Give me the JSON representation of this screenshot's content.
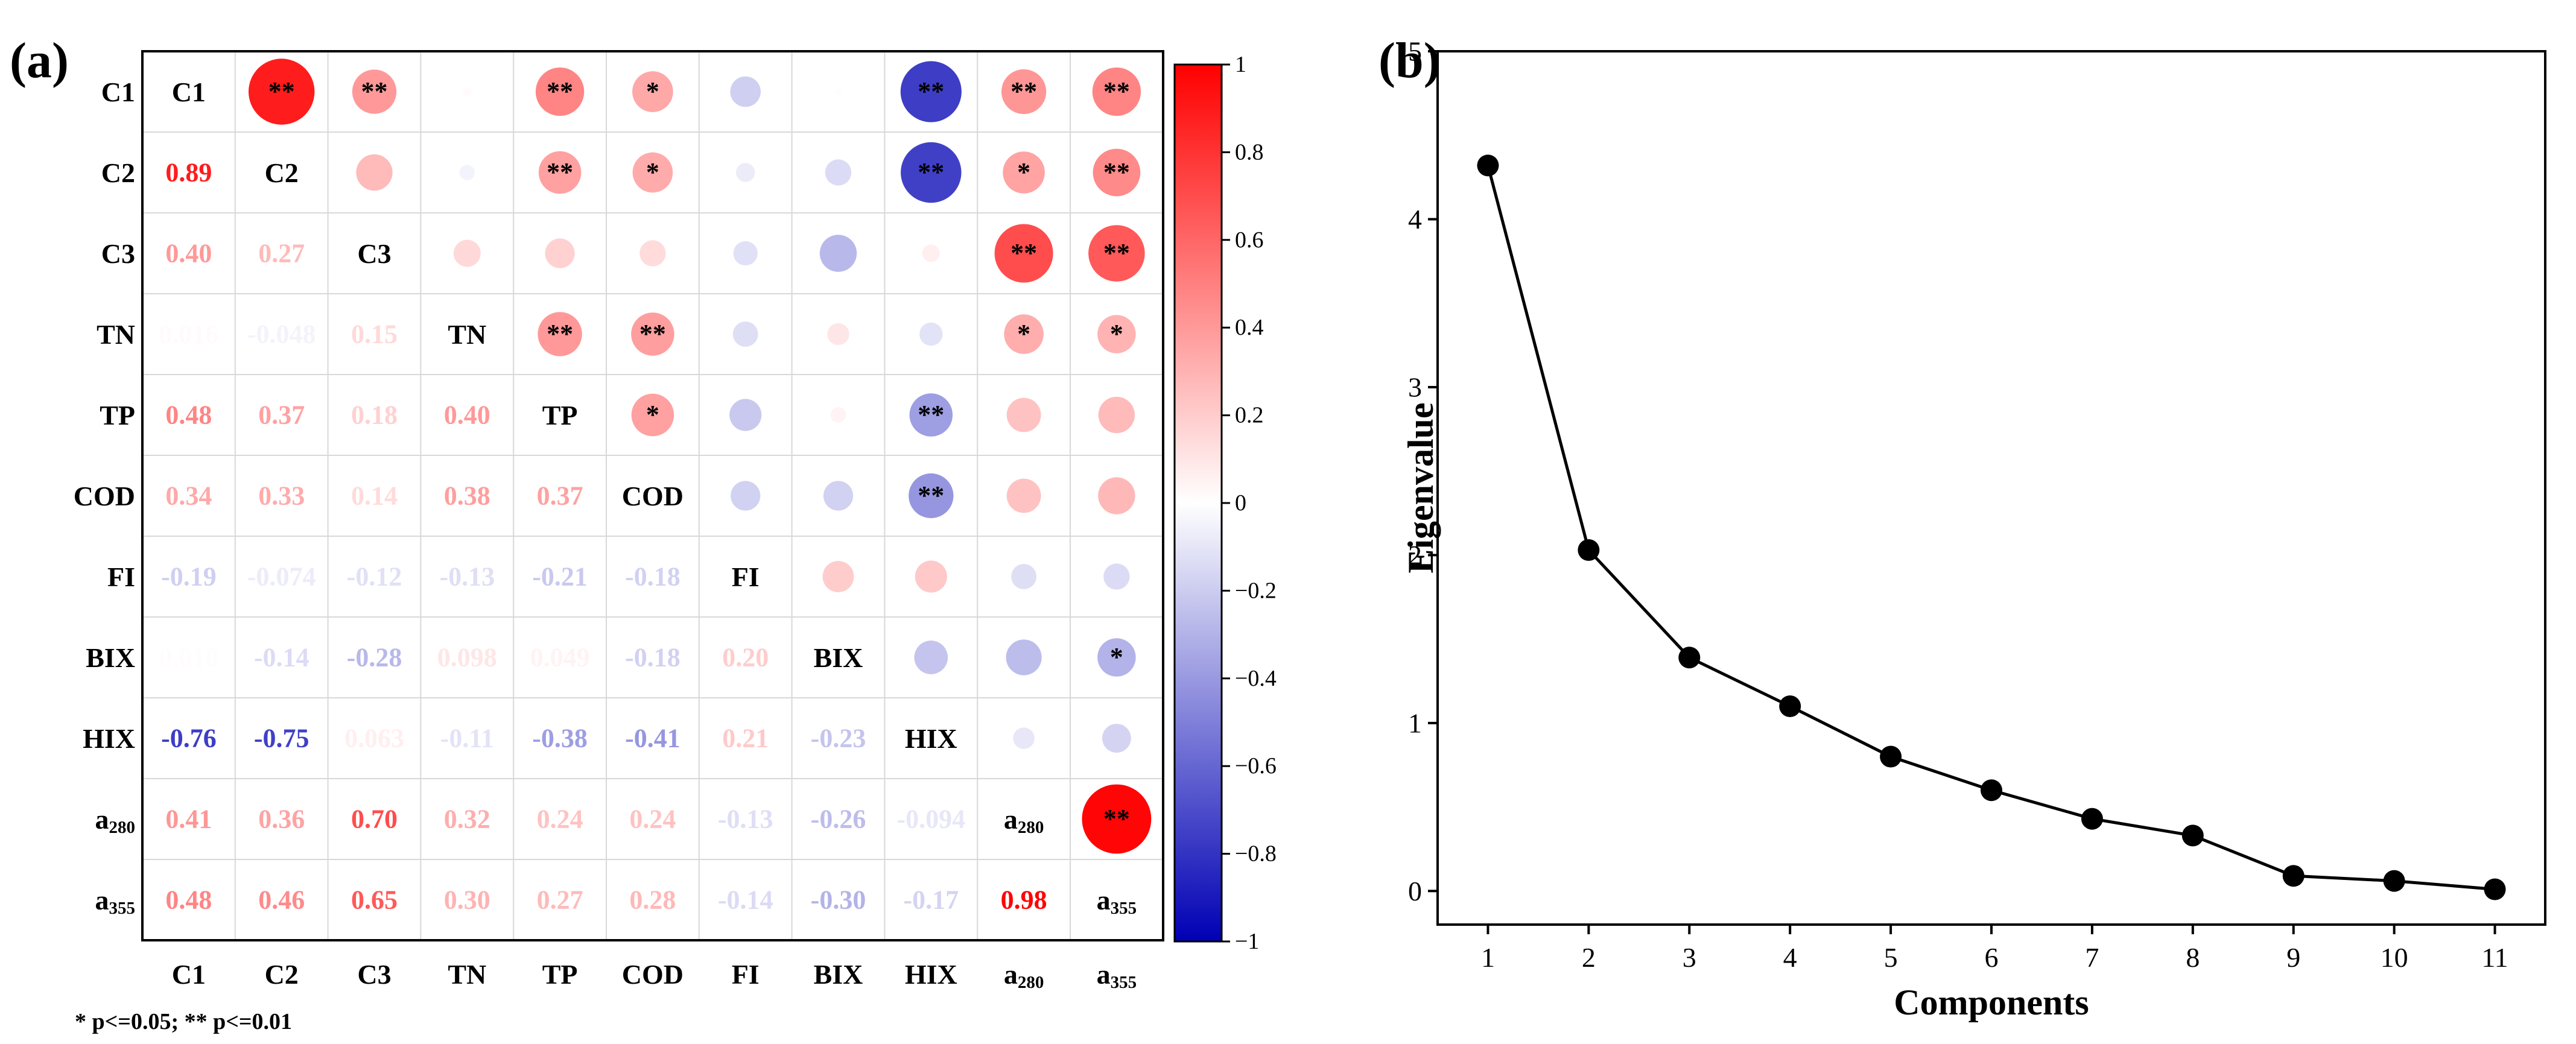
{
  "panel_a_label": "(a)",
  "panel_b_label": "(b)",
  "significance_note": "* p<=0.05; ** p<=0.01",
  "colors": {
    "positive": "#ff0000",
    "negative": "#0000b4",
    "neutral": "#ffffff"
  },
  "chart_data": [
    {
      "type": "heatmap",
      "variables": [
        "C1",
        "C2",
        "C3",
        "TN",
        "TP",
        "COD",
        "FI",
        "BIX",
        "HIX",
        "a280",
        "a355"
      ],
      "variable_display": [
        {
          "base": "C1",
          "sub": ""
        },
        {
          "base": "C2",
          "sub": ""
        },
        {
          "base": "C3",
          "sub": ""
        },
        {
          "base": "TN",
          "sub": ""
        },
        {
          "base": "TP",
          "sub": ""
        },
        {
          "base": "COD",
          "sub": ""
        },
        {
          "base": "FI",
          "sub": ""
        },
        {
          "base": "BIX",
          "sub": ""
        },
        {
          "base": "HIX",
          "sub": ""
        },
        {
          "base": "a",
          "sub": "280"
        },
        {
          "base": "a",
          "sub": "355"
        }
      ],
      "lower_labels": [
        [],
        [
          "0.89"
        ],
        [
          "0.40",
          "0.27"
        ],
        [
          "0.016",
          "-0.048",
          "0.15"
        ],
        [
          "0.48",
          "0.37",
          "0.18",
          "0.40"
        ],
        [
          "0.34",
          "0.33",
          "0.14",
          "0.38",
          "0.37"
        ],
        [
          "-0.19",
          "-0.074",
          "-0.12",
          "-0.13",
          "-0.21",
          "-0.18"
        ],
        [
          "0.010",
          "-0.14",
          "-0.28",
          "0.098",
          "0.049",
          "-0.18",
          "0.20"
        ],
        [
          "-0.76",
          "-0.75",
          "0.063",
          "-0.11",
          "-0.38",
          "-0.41",
          "0.21",
          "-0.23"
        ],
        [
          "0.41",
          "0.36",
          "0.70",
          "0.32",
          "0.24",
          "0.24",
          "-0.13",
          "-0.26",
          "-0.094"
        ],
        [
          "0.48",
          "0.46",
          "0.65",
          "0.30",
          "0.27",
          "0.28",
          "-0.14",
          "-0.30",
          "-0.17",
          "0.98"
        ]
      ],
      "significance": [
        [
          "",
          "**",
          "**",
          "",
          "**",
          "*",
          "",
          "",
          "**",
          "**",
          "**"
        ],
        [
          "**",
          "",
          "",
          "",
          "**",
          "*",
          "",
          "",
          "**",
          "*",
          "**"
        ],
        [
          "**",
          "",
          "",
          "",
          "",
          "",
          "",
          "",
          "",
          "**",
          "**"
        ],
        [
          "",
          "",
          "",
          "",
          "**",
          "**",
          "",
          "",
          "",
          "*",
          "*"
        ],
        [
          "**",
          "**",
          "",
          "**",
          "",
          "*",
          "",
          "",
          "**",
          "",
          ""
        ],
        [
          "*",
          "*",
          "",
          "**",
          "*",
          "",
          "",
          "",
          "**",
          "",
          ""
        ],
        [
          "",
          "",
          "",
          "",
          "",
          "",
          "",
          "",
          "",
          "",
          ""
        ],
        [
          "",
          "",
          "",
          "",
          "",
          "",
          "",
          "",
          "",
          "",
          "*"
        ],
        [
          "**",
          "**",
          "",
          "",
          "**",
          "**",
          "",
          "",
          "",
          "",
          ""
        ],
        [
          "**",
          "*",
          "**",
          "*",
          "",
          "",
          "",
          "",
          "",
          "",
          "**"
        ],
        [
          "**",
          "**",
          "**",
          "*",
          "",
          "",
          "",
          "*",
          "",
          "**",
          ""
        ]
      ],
      "colorbar": {
        "range": [
          -1,
          1
        ],
        "ticks": [
          "1",
          "0.8",
          "0.6",
          "0.4",
          "0.2",
          "0",
          "−0.2",
          "−0.4",
          "−0.6",
          "−0.8",
          "−1"
        ]
      }
    },
    {
      "type": "line",
      "x": [
        1,
        2,
        3,
        4,
        5,
        6,
        7,
        8,
        9,
        10,
        11
      ],
      "y": [
        4.32,
        2.03,
        1.39,
        1.1,
        0.8,
        0.6,
        0.43,
        0.33,
        0.09,
        0.06,
        0.01
      ],
      "xlabel": "Components",
      "ylabel": "Eigenvalue",
      "xlim": [
        0.5,
        11.5
      ],
      "ylim": [
        -0.2,
        5
      ],
      "xticks": [
        "1",
        "2",
        "3",
        "4",
        "5",
        "6",
        "7",
        "8",
        "9",
        "10",
        "11"
      ],
      "yticks": [
        "0",
        "1",
        "2",
        "3",
        "4",
        "5"
      ]
    }
  ]
}
